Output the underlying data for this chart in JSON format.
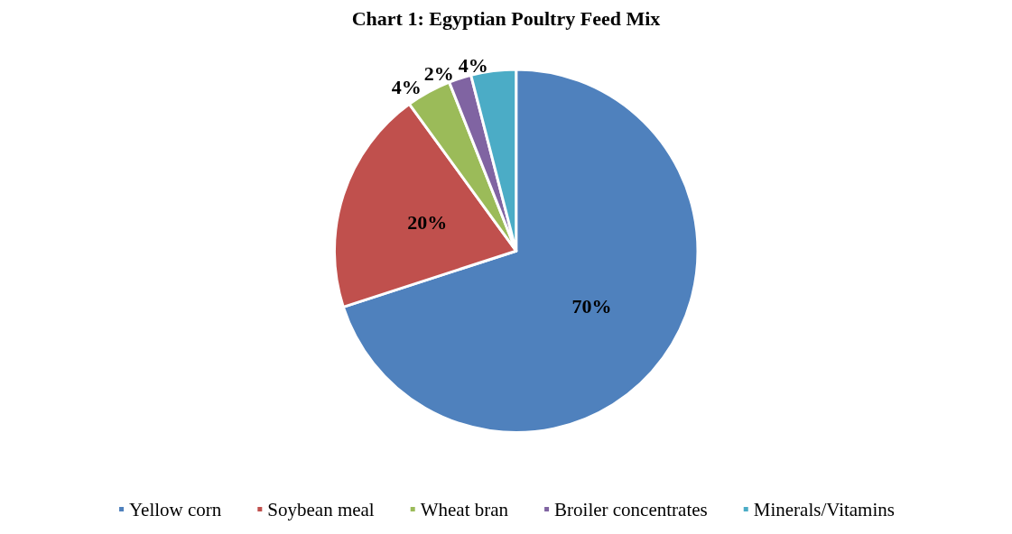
{
  "chart_data": {
    "type": "pie",
    "title": "Chart 1: Egyptian Poultry Feed Mix",
    "categories": [
      "Yellow corn",
      "Soybean meal",
      "Wheat bran",
      "Broiler concentrates",
      "Minerals/Vitamins"
    ],
    "values": [
      70,
      20,
      4,
      2,
      4
    ],
    "colors": [
      "#4f81bd",
      "#c0504d",
      "#9bbb59",
      "#8064a2",
      "#4bacc6"
    ],
    "value_labels": [
      "70%",
      "20%",
      "4%",
      "2%",
      "4%"
    ],
    "legend": "bottom"
  }
}
